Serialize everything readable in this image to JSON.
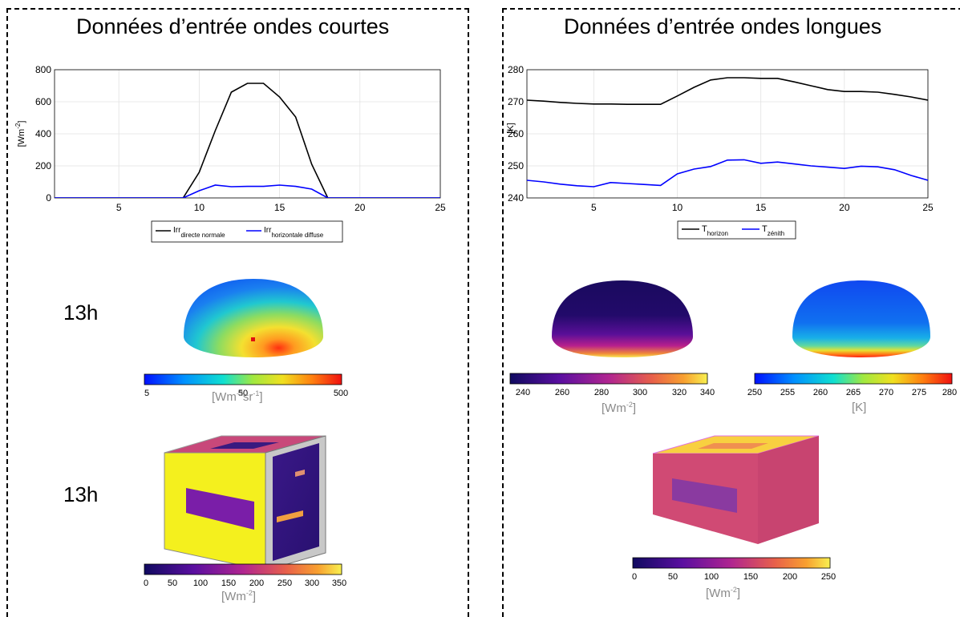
{
  "left": {
    "title": "Données d’entrée ondes courtes",
    "hour_1": "13h",
    "hour_2": "13h",
    "colorbar_sky": {
      "ticks": [
        "5",
        "50",
        "500"
      ],
      "unit": "[Wm",
      "unit_sup1": "-2",
      "unit_mid": "sr",
      "unit_sup2": "-1",
      "unit_end": "]"
    },
    "colorbar_box": {
      "ticks": [
        "0",
        "50",
        "100",
        "150",
        "200",
        "250",
        "300",
        "350"
      ],
      "unit": "[Wm",
      "unit_sup": "-2",
      "unit_end": "]"
    }
  },
  "right": {
    "title": "Données d’entrée ondes longues",
    "colorbar_sky_left": {
      "ticks": [
        "240",
        "260",
        "280",
        "300",
        "320",
        "340"
      ],
      "unit": "[Wm",
      "unit_sup": "-2",
      "unit_end": "]"
    },
    "colorbar_sky_right": {
      "ticks": [
        "250",
        "255",
        "260",
        "265",
        "270",
        "275",
        "280"
      ],
      "unit": "[K]"
    },
    "colorbar_box": {
      "ticks": [
        "0",
        "50",
        "100",
        "150",
        "200",
        "250"
      ],
      "unit": "[Wm",
      "unit_sup": "-2",
      "unit_end": "]"
    }
  },
  "colors": {
    "series_black": "#000000",
    "series_blue": "#0000ff",
    "yellow": "#f2f01a",
    "magenta": "#c84a80"
  },
  "chart_data": [
    {
      "type": "line",
      "ylabel": "[Wm",
      "ylabel_sup": "-2",
      "ylabel_end": "]",
      "xlim": [
        1,
        25
      ],
      "ylim": [
        0,
        800
      ],
      "xticks": [
        5,
        10,
        15,
        20,
        25
      ],
      "yticks": [
        0,
        200,
        400,
        600,
        800
      ],
      "grid": true,
      "legend_position": "bottom",
      "x": [
        1,
        2,
        3,
        4,
        5,
        6,
        7,
        8,
        9,
        10,
        11,
        12,
        13,
        14,
        15,
        16,
        17,
        18,
        19,
        20,
        21,
        22,
        23,
        24,
        25
      ],
      "series": [
        {
          "name": "Irr",
          "name_sub": "directe normale",
          "color": "#000000",
          "values": [
            0,
            0,
            0,
            0,
            0,
            0,
            0,
            0,
            0,
            160,
            420,
            660,
            715,
            715,
            630,
            505,
            210,
            0,
            0,
            0,
            0,
            0,
            0,
            0,
            0
          ]
        },
        {
          "name": "Irr",
          "name_sub": "horizontale diffuse",
          "color": "#0000ff",
          "values": [
            0,
            0,
            0,
            0,
            0,
            0,
            0,
            0,
            0,
            45,
            80,
            70,
            72,
            72,
            80,
            72,
            55,
            0,
            0,
            0,
            0,
            0,
            0,
            0,
            0
          ]
        }
      ]
    },
    {
      "type": "line",
      "ylabel": "[K]",
      "xlim": [
        1,
        25
      ],
      "ylim": [
        240,
        280
      ],
      "xticks": [
        5,
        10,
        15,
        20,
        25
      ],
      "yticks": [
        240,
        250,
        260,
        270,
        280
      ],
      "grid": true,
      "legend_position": "bottom",
      "x": [
        1,
        2,
        3,
        4,
        5,
        6,
        7,
        8,
        9,
        10,
        11,
        12,
        13,
        14,
        15,
        16,
        17,
        18,
        19,
        20,
        21,
        22,
        23,
        24,
        25
      ],
      "series": [
        {
          "name": "T",
          "name_sub": "horizon",
          "color": "#000000",
          "values": [
            270.5,
            270.2,
            269.8,
            269.5,
            269.3,
            269.3,
            269.2,
            269.2,
            269.2,
            271.8,
            274.5,
            276.8,
            277.5,
            277.5,
            277.3,
            277.3,
            276.2,
            275.0,
            273.8,
            273.2,
            273.2,
            273.0,
            272.3,
            271.5,
            270.5
          ]
        },
        {
          "name": "T",
          "name_sub": "zénith",
          "color": "#0000ff",
          "values": [
            245.5,
            245.0,
            244.3,
            243.8,
            243.5,
            244.8,
            244.5,
            244.2,
            243.9,
            247.5,
            249.0,
            249.8,
            251.8,
            251.9,
            250.8,
            251.2,
            250.6,
            250.0,
            249.6,
            249.2,
            249.9,
            249.7,
            248.8,
            247.0,
            245.5
          ]
        }
      ]
    }
  ]
}
